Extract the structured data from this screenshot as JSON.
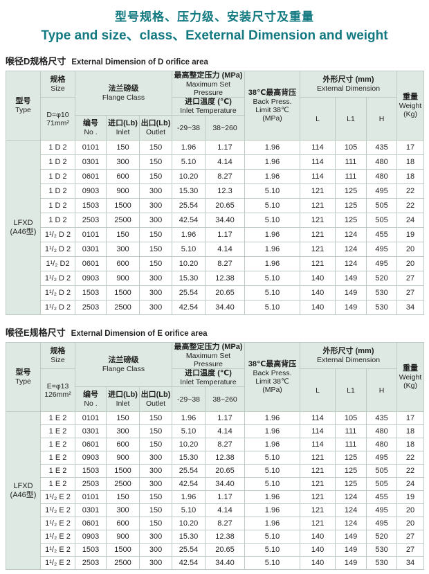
{
  "accent_color": "#127980",
  "header_bg": "#dfe9e3",
  "page_title": {
    "zh": "型号规格、压力级、安装尺寸及重量",
    "en": "Type and size、class、Exeternal  Dimension and weight"
  },
  "table_header": {
    "type_zh": "型号",
    "type_en": "Type",
    "size_zh": "规格",
    "size_en": "Size",
    "flange_zh": "法兰磅级",
    "flange_en": "Flange  Class",
    "no_zh": "编号",
    "no_en": "No .",
    "inlet_zh": "进口(Lb)",
    "inlet_en": "Inlet",
    "outlet_zh": "出口(Lb)",
    "outlet_en": "Outlet",
    "max_set_zh": "最高整定压力 (MPa)",
    "max_set_en": "Maximum Set Pressure",
    "inlet_temp_zh": "进口温度 (℃)",
    "inlet_temp_en": "Inlet Temperature",
    "temp_range_1": "-29~38",
    "temp_range_2": "38~260",
    "back_press_lines": [
      "38℃最高背压",
      "Back Press.",
      "Limit 38℃",
      "(MPa)"
    ],
    "ext_dim_zh": "外形尺寸 (mm)",
    "ext_dim_en": "External Dimension",
    "col_l": "L",
    "col_l1": "L1",
    "col_h": "H",
    "weight_zh": "重量",
    "weight_en": "Weight",
    "weight_unit": "(Kg)"
  },
  "sections": [
    {
      "title_zh": "喉径D规格尺寸",
      "title_en": "External Dimension of D orifice area",
      "size_spec_line1": "D=φ10",
      "size_spec_line2": "71mm²",
      "type_value_line1": "LFXD",
      "type_value_line2": "(A46型)",
      "rows": [
        [
          "1 D 2",
          "0101",
          "150",
          "150",
          "1.96",
          "1.17",
          "1.96",
          "114",
          "105",
          "435",
          "17"
        ],
        [
          "1 D 2",
          "0301",
          "300",
          "150",
          "5.10",
          "4.14",
          "1.96",
          "114",
          "111",
          "480",
          "18"
        ],
        [
          "1 D 2",
          "0601",
          "600",
          "150",
          "10.20",
          "8.27",
          "1.96",
          "114",
          "111",
          "480",
          "18"
        ],
        [
          "1 D 2",
          "0903",
          "900",
          "300",
          "15.30",
          "12.3",
          "5.10",
          "121",
          "125",
          "495",
          "22"
        ],
        [
          "1 D 2",
          "1503",
          "1500",
          "300",
          "25.54",
          "20.65",
          "5.10",
          "121",
          "125",
          "505",
          "22"
        ],
        [
          "1 D 2",
          "2503",
          "2500",
          "300",
          "42.54",
          "34.40",
          "5.10",
          "121",
          "125",
          "505",
          "24"
        ],
        [
          "1¹/₂ D 2",
          "0101",
          "150",
          "150",
          "1.96",
          "1.17",
          "1.96",
          "121",
          "124",
          "455",
          "19"
        ],
        [
          "1¹/₂ D 2",
          "0301",
          "300",
          "150",
          "5.10",
          "4.14",
          "1.96",
          "121",
          "124",
          "495",
          "20"
        ],
        [
          "1¹/₂ D2",
          "0601",
          "600",
          "150",
          "10.20",
          "8.27",
          "1.96",
          "121",
          "124",
          "495",
          "20"
        ],
        [
          "1¹/₂ D 2",
          "0903",
          "900",
          "300",
          "15.30",
          "12.38",
          "5.10",
          "140",
          "149",
          "520",
          "27"
        ],
        [
          "1¹/₂ D 2",
          "1503",
          "1500",
          "300",
          "25.54",
          "20.65",
          "5.10",
          "140",
          "149",
          "530",
          "27"
        ],
        [
          "1¹/₂ D 2",
          "2503",
          "2500",
          "300",
          "42.54",
          "34.40",
          "5.10",
          "140",
          "149",
          "530",
          "34"
        ]
      ]
    },
    {
      "title_zh": "喉径E规格尺寸",
      "title_en": "External Dimension of E orifice area",
      "size_spec_line1": "E=φ13",
      "size_spec_line2": "126mm²",
      "type_value_line1": "LFXD",
      "type_value_line2": "(A46型)",
      "rows": [
        [
          "1 E 2",
          "0101",
          "150",
          "150",
          "1.96",
          "1.17",
          "1.96",
          "114",
          "105",
          "435",
          "17"
        ],
        [
          "1 E 2",
          "0301",
          "300",
          "150",
          "5.10",
          "4.14",
          "1.96",
          "114",
          "111",
          "480",
          "18"
        ],
        [
          "1 E 2",
          "0601",
          "600",
          "150",
          "10.20",
          "8.27",
          "1.96",
          "114",
          "111",
          "480",
          "18"
        ],
        [
          "1 E 2",
          "0903",
          "900",
          "300",
          "15.30",
          "12.38",
          "5.10",
          "121",
          "125",
          "495",
          "22"
        ],
        [
          "1 E 2",
          "1503",
          "1500",
          "300",
          "25.54",
          "20.65",
          "5.10",
          "121",
          "125",
          "505",
          "22"
        ],
        [
          "1 E 2",
          "2503",
          "2500",
          "300",
          "42.54",
          "34.40",
          "5.10",
          "121",
          "125",
          "505",
          "24"
        ],
        [
          "1¹/₂ E 2",
          "0101",
          "150",
          "150",
          "1.96",
          "1.17",
          "1.96",
          "121",
          "124",
          "455",
          "19"
        ],
        [
          "1¹/₂ E 2",
          "0301",
          "300",
          "150",
          "5.10",
          "4.14",
          "1.96",
          "121",
          "124",
          "495",
          "20"
        ],
        [
          "1¹/₂ E 2",
          "0601",
          "600",
          "150",
          "10.20",
          "8.27",
          "1.96",
          "121",
          "124",
          "495",
          "20"
        ],
        [
          "1¹/₂ E 2",
          "0903",
          "900",
          "300",
          "15.30",
          "12.38",
          "5.10",
          "140",
          "149",
          "520",
          "27"
        ],
        [
          "1¹/₂ E 2",
          "1503",
          "1500",
          "300",
          "25.54",
          "20.65",
          "5.10",
          "140",
          "149",
          "530",
          "27"
        ],
        [
          "1¹/₂ E 2",
          "2503",
          "2500",
          "300",
          "42.54",
          "34.40",
          "5.10",
          "140",
          "149",
          "530",
          "34"
        ]
      ]
    }
  ]
}
